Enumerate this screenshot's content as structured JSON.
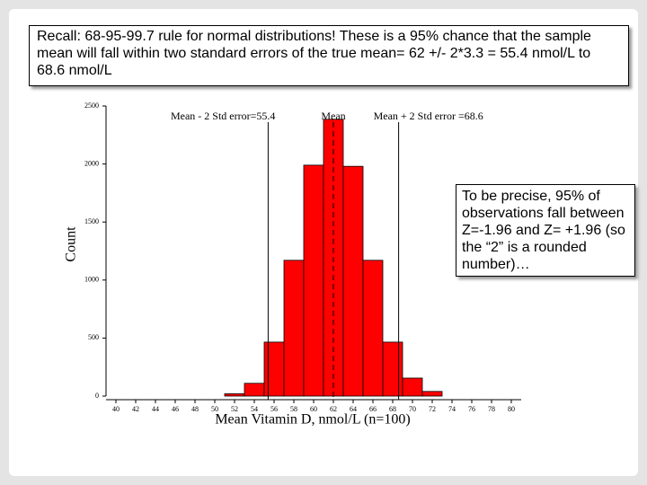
{
  "chart_data": {
    "type": "histogram",
    "annotations": [
      "Recall: 68-95-99.7 rule for normal distributions!  These is a 95% chance that the sample mean will fall within two standard errors of the true mean= 62 +/- 2*3.3 = 55.4 nmol/L to 68.6 nmol/L",
      "To be precise, 95% of observations fall between Z=-1.96 and Z= +1.96 (so the “2” is a rounded number)…"
    ],
    "x_label": "Mean Vitamin D, nmol/L (n=100)",
    "y_label": "Count",
    "bins": [
      51,
      53,
      55,
      57,
      59,
      61,
      63,
      65,
      67,
      69,
      71,
      73
    ],
    "values": [
      20,
      110,
      465,
      1170,
      1990,
      2385,
      1980,
      1170,
      465,
      155,
      40
    ],
    "color": "#ff0000",
    "xlim": [
      39,
      81
    ],
    "ylim": [
      0,
      2500
    ],
    "xticks": [
      40,
      42,
      44,
      46,
      48,
      50,
      52,
      54,
      56,
      58,
      60,
      62,
      64,
      66,
      68,
      70,
      72,
      74,
      76,
      78,
      80
    ],
    "yticks": [
      0,
      500,
      1000,
      1500,
      2000,
      2500
    ],
    "vlines": [
      {
        "value": 55.4,
        "label": "Mean - 2 Std error=55.4"
      },
      {
        "value": 62,
        "label": "Mean",
        "style": "dashed"
      },
      {
        "value": 68.6,
        "label": "Mean + 2 Std error =68.6"
      }
    ]
  }
}
